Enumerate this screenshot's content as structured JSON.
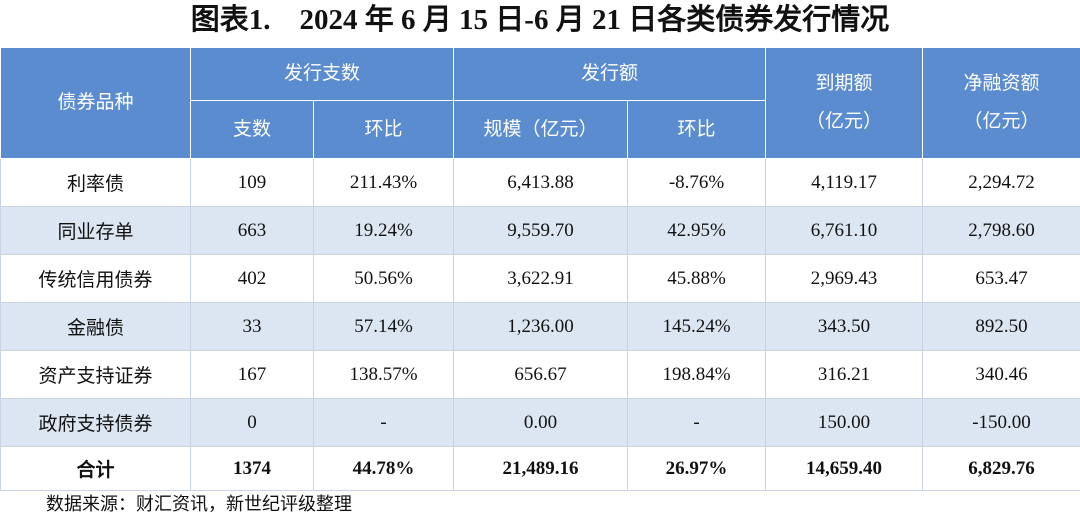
{
  "title": "图表1.　2024 年 6 月 15 日-6 月 21 日各类债券发行情况",
  "table": {
    "columns": [
      "债券品种",
      "发行支数",
      "发行额",
      "到期额\n（亿元）",
      "净融资额\n（亿元）"
    ],
    "subcolumns": [
      "支数",
      "环比",
      "规模（亿元）",
      "环比"
    ],
    "rows": [
      [
        "利率债",
        "109",
        "211.43%",
        "6,413.88",
        "-8.76%",
        "4,119.17",
        "2,294.72"
      ],
      [
        "同业存单",
        "663",
        "19.24%",
        "9,559.70",
        "42.95%",
        "6,761.10",
        "2,798.60"
      ],
      [
        "传统信用债券",
        "402",
        "50.56%",
        "3,622.91",
        "45.88%",
        "2,969.43",
        "653.47"
      ],
      [
        "金融债",
        "33",
        "57.14%",
        "1,236.00",
        "145.24%",
        "343.50",
        "892.50"
      ],
      [
        "资产支持证券",
        "167",
        "138.57%",
        "656.67",
        "198.84%",
        "316.21",
        "340.46"
      ],
      [
        "政府支持债券",
        "0",
        "-",
        "0.00",
        "-",
        "150.00",
        "-150.00"
      ],
      [
        "合计",
        "1374",
        "44.78%",
        "21,489.16",
        "26.97%",
        "14,659.40",
        "6,829.76"
      ]
    ]
  },
  "source": "数据来源：财汇资讯，新世纪评级整理"
}
